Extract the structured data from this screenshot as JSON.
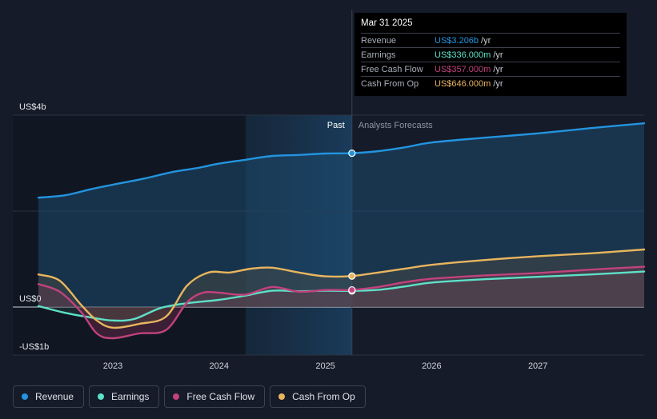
{
  "chart_data": {
    "type": "line",
    "y_tick_labels": [
      "US$4b",
      "US$0",
      "-US$1b"
    ],
    "x_tick_labels": [
      "2023",
      "2024",
      "2025",
      "2026",
      "2027"
    ],
    "x_range": [
      2022.3,
      2028.0
    ],
    "ylim": [
      -1.0,
      4.0
    ],
    "divider_date": 2025.25,
    "past_label": "Past",
    "forecast_label": "Analysts Forecasts",
    "series": [
      {
        "name": "Revenue",
        "color": "#2394df",
        "x": [
          2022.3,
          2022.55,
          2022.8,
          2023.0,
          2023.3,
          2023.55,
          2023.8,
          2024.0,
          2024.25,
          2024.5,
          2024.75,
          2025.0,
          2025.25,
          2025.5,
          2025.75,
          2026.0,
          2026.5,
          2027.0,
          2027.5,
          2028.0
        ],
        "y": [
          2.28,
          2.33,
          2.46,
          2.55,
          2.68,
          2.81,
          2.9,
          2.99,
          3.07,
          3.15,
          3.17,
          3.2,
          3.206,
          3.25,
          3.33,
          3.43,
          3.53,
          3.62,
          3.73,
          3.83
        ]
      },
      {
        "name": "Earnings",
        "color": "#5ee0c8",
        "x": [
          2022.3,
          2022.55,
          2022.8,
          2023.0,
          2023.2,
          2023.45,
          2023.7,
          2024.0,
          2024.25,
          2024.5,
          2024.75,
          2025.0,
          2025.25,
          2025.5,
          2025.75,
          2026.0,
          2026.5,
          2027.0,
          2027.5,
          2028.0
        ],
        "y": [
          0.02,
          -0.12,
          -0.22,
          -0.28,
          -0.25,
          -0.02,
          0.08,
          0.15,
          0.24,
          0.34,
          0.33,
          0.34,
          0.336,
          0.36,
          0.43,
          0.51,
          0.58,
          0.63,
          0.68,
          0.74
        ]
      },
      {
        "name": "Free Cash Flow",
        "color": "#c2427e",
        "x": [
          2022.3,
          2022.5,
          2022.7,
          2022.85,
          2023.0,
          2023.25,
          2023.5,
          2023.7,
          2023.85,
          2024.0,
          2024.25,
          2024.5,
          2024.75,
          2025.0,
          2025.25,
          2025.5,
          2025.75,
          2026.0,
          2026.5,
          2027.0,
          2027.5,
          2028.0
        ],
        "y": [
          0.48,
          0.32,
          -0.1,
          -0.55,
          -0.65,
          -0.55,
          -0.48,
          0.1,
          0.3,
          0.3,
          0.26,
          0.42,
          0.32,
          0.355,
          0.357,
          0.42,
          0.52,
          0.59,
          0.66,
          0.71,
          0.78,
          0.84
        ]
      },
      {
        "name": "Cash From Op",
        "color": "#e8b55e",
        "x": [
          2022.3,
          2022.5,
          2022.7,
          2022.85,
          2023.0,
          2023.25,
          2023.5,
          2023.7,
          2023.9,
          2024.1,
          2024.3,
          2024.5,
          2024.75,
          2025.0,
          2025.25,
          2025.5,
          2025.75,
          2026.0,
          2026.5,
          2027.0,
          2027.5,
          2028.0
        ],
        "y": [
          0.68,
          0.55,
          0.05,
          -0.28,
          -0.43,
          -0.35,
          -0.2,
          0.45,
          0.72,
          0.72,
          0.8,
          0.82,
          0.72,
          0.64,
          0.646,
          0.72,
          0.8,
          0.88,
          0.98,
          1.06,
          1.12,
          1.2
        ]
      }
    ]
  },
  "tooltip": {
    "date": "Mar 31 2025",
    "rows": [
      {
        "label": "Revenue",
        "value": "US$3.206b",
        "unit": "/yr",
        "color": "#2394df"
      },
      {
        "label": "Earnings",
        "value": "US$336.000m",
        "unit": "/yr",
        "color": "#5ee0c8"
      },
      {
        "label": "Free Cash Flow",
        "value": "US$357.000m",
        "unit": "/yr",
        "color": "#c2427e"
      },
      {
        "label": "Cash From Op",
        "value": "US$646.000m",
        "unit": "/yr",
        "color": "#e8b55e"
      }
    ]
  },
  "legend": [
    {
      "label": "Revenue",
      "color": "#2394df"
    },
    {
      "label": "Earnings",
      "color": "#5ee0c8"
    },
    {
      "label": "Free Cash Flow",
      "color": "#c2427e"
    },
    {
      "label": "Cash From Op",
      "color": "#e8b55e"
    }
  ]
}
